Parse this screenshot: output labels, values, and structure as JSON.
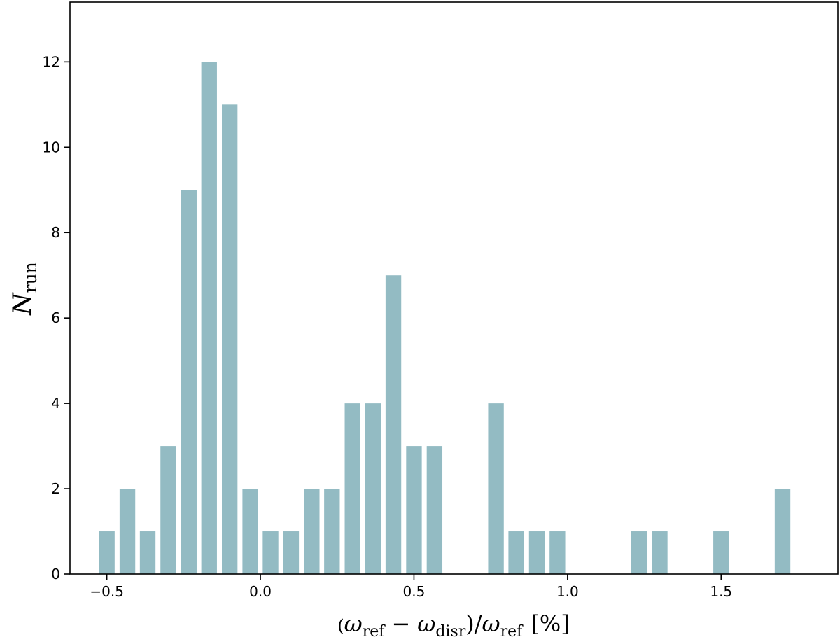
{
  "chart_data": {
    "type": "bar",
    "bar_color": "#93bbc3",
    "bin_width": 0.067,
    "x": [
      -0.5,
      -0.433,
      -0.367,
      -0.3,
      -0.233,
      -0.167,
      -0.1,
      -0.033,
      0.033,
      0.1,
      0.167,
      0.233,
      0.3,
      0.367,
      0.433,
      0.5,
      0.567,
      0.633,
      0.7,
      0.767,
      0.833,
      0.9,
      0.967,
      1.033,
      1.1,
      1.167,
      1.233,
      1.3,
      1.367,
      1.433,
      1.5,
      1.567,
      1.633,
      1.7
    ],
    "values": [
      1,
      2,
      1,
      3,
      9,
      12,
      11,
      2,
      1,
      1,
      2,
      2,
      4,
      4,
      7,
      3,
      3,
      0,
      0,
      4,
      1,
      1,
      1,
      0,
      0,
      0,
      1,
      1,
      0,
      0,
      1,
      0,
      0,
      2
    ],
    "xlim": [
      -0.62,
      1.88
    ],
    "ylim": [
      0,
      13.4
    ],
    "xticks": [
      -0.5,
      0.0,
      0.5,
      1.0,
      1.5
    ],
    "xtick_labels": [
      "−0.5",
      "0.0",
      "0.5",
      "1.0",
      "1.5"
    ],
    "yticks": [
      0,
      2,
      4,
      6,
      8,
      10,
      12
    ],
    "ytick_labels": [
      "0",
      "2",
      "4",
      "6",
      "8",
      "10",
      "12"
    ],
    "xlabel": {
      "paren_open": "(",
      "omega": "ω",
      "ref": "ref",
      "minus": "−",
      "disr": "disr",
      "close_slash": ")/",
      "percent": "[%]"
    },
    "ylabel": {
      "main": "N",
      "sub": "run"
    },
    "grid": false
  }
}
